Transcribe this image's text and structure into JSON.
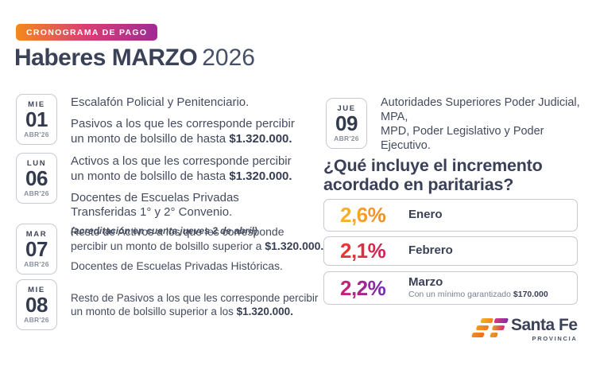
{
  "badge": {
    "label": "CRONOGRAMA DE PAGO",
    "gradient": [
      "#F28A1E",
      "#D83E74",
      "#9E2B96"
    ]
  },
  "title": {
    "main": "Haberes MARZO",
    "year": "2026"
  },
  "schedule": [
    {
      "weekday": "MIE",
      "day": "01",
      "month": "ABR'26",
      "paragraphs": [
        {
          "segments": [
            {
              "t": "Escalafón Policial y Penitenciario."
            }
          ]
        },
        {
          "segments": [
            {
              "t": "Pasivos a los que les corresponde percibir\nun monto de bolsillo de hasta "
            },
            {
              "t": "$1.320.000.",
              "b": true
            }
          ]
        }
      ]
    },
    {
      "weekday": "LUN",
      "day": "06",
      "month": "ABR'26",
      "paragraphs": [
        {
          "segments": [
            {
              "t": "Activos a los que les corresponde percibir\nun monto de bolsillo de hasta "
            },
            {
              "t": "$1.320.000.",
              "b": true
            }
          ]
        },
        {
          "segments": [
            {
              "t": "Docentes de Escuelas Privadas\nTransferidas 1° y 2° Convenio."
            }
          ]
        },
        {
          "style": "note",
          "segments": [
            {
              "t": "(acreditación en cuenta jueves 2 de abril)"
            }
          ]
        }
      ]
    },
    {
      "weekday": "MAR",
      "day": "07",
      "month": "ABR'26",
      "paragraphs": [
        {
          "segments": [
            {
              "t": "Resto de Activos a los que les corresponde\npercibir un monto de bolsillo superior a "
            },
            {
              "t": "$1.320.000.",
              "b": true
            }
          ]
        },
        {
          "segments": [
            {
              "t": "Docentes de Escuelas Privadas Históricas."
            }
          ]
        }
      ]
    },
    {
      "weekday": "MIE",
      "day": "08",
      "month": "ABR'26",
      "paragraphs": [
        {
          "segments": [
            {
              "t": "Resto de Pasivos a los que les corresponde percibir\nun monto de bolsillo superior a los "
            },
            {
              "t": "$1.320.000.",
              "b": true
            }
          ]
        }
      ]
    }
  ],
  "right_schedule": {
    "weekday": "JUE",
    "day": "09",
    "month": "ABR'26",
    "paragraphs": [
      {
        "segments": [
          {
            "t": "Autoridades Superiores Poder Judicial, MPA,\nMPD, Poder Legislativo y Poder Ejecutivo."
          }
        ]
      }
    ]
  },
  "question": "¿Qué incluye el incremento\nacordado en paritarias?",
  "increments": [
    {
      "percent": "2,6%",
      "month": "Enero",
      "gradient": [
        "#F9B42A",
        "#EE7E1F"
      ]
    },
    {
      "percent": "2,1%",
      "month": "Febrero",
      "gradient": [
        "#EA392D",
        "#C11D68"
      ]
    },
    {
      "percent": "2,2%",
      "month": "Marzo",
      "gradient": [
        "#D02070",
        "#5630C9"
      ],
      "note": [
        {
          "t": "Con un mínimo garantizado "
        },
        {
          "t": "$170.000",
          "b": true
        }
      ]
    }
  ],
  "logo": {
    "name": "Santa Fe",
    "subtitle": "PROVINCIA"
  }
}
